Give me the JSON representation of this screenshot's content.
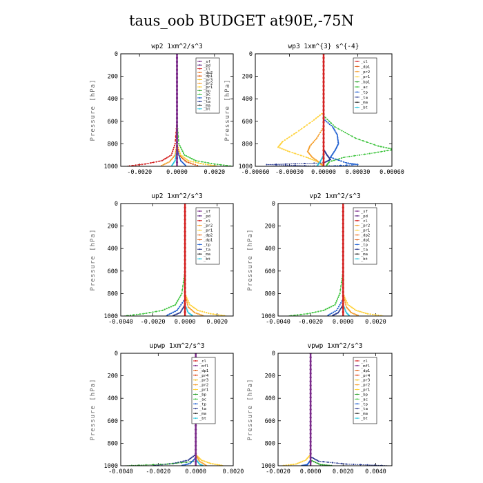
{
  "title": "taus_oob  BUDGET at90E,-75N",
  "colors": {
    "sf": "#7a2a8a",
    "pd": "#5a2080",
    "cl": "#d42020",
    "dp2": "#e87020",
    "dp1": "#e05a10",
    "pr3": "#f2c020",
    "pr2": "#f5a030",
    "pr1": "#ffd23a",
    "bp": "#2aa02a",
    "ac": "#3ec43e",
    "tp": "#1f5fd0",
    "ta": "#2a3a90",
    "ma": "#333333",
    "bt": "#30c8e0",
    "mfl": "#7a2a8a",
    "pr4": "#e04010"
  },
  "panels": [
    {
      "id": "wp2",
      "title": "wp2  1xm^2/s^3",
      "ylabel": "Pressure [hPa]",
      "xlim": [
        -0.003,
        0.003
      ],
      "ylim": [
        1000,
        0
      ],
      "xticks": [
        -0.002,
        0.0,
        0.002
      ],
      "xtick_labels": [
        "-0.0020",
        "0.0000",
        "0.0020"
      ],
      "yticks": [
        0,
        200,
        400,
        600,
        800,
        1000
      ],
      "ytick_labels": [
        "0",
        "200",
        "400",
        "600",
        "800",
        "1000"
      ],
      "legend": [
        "_sf",
        "_pd",
        "_cl",
        "_dp2",
        "_dp1",
        "_pr3",
        "_pr2",
        "_pr1",
        "_bp",
        "_ac",
        "_tp",
        "_ta",
        "_ma",
        "_bt"
      ],
      "series": [
        {
          "name": "_cl",
          "color_key": "cl",
          "p": [
            0,
            600,
            800,
            900,
            950,
            980,
            1000
          ],
          "v": [
            0,
            0,
            -0.0001,
            -0.0003,
            -0.0008,
            -0.0017,
            -0.0027
          ]
        },
        {
          "name": "_ac",
          "color_key": "ac",
          "p": [
            0,
            600,
            800,
            900,
            950,
            980,
            1000
          ],
          "v": [
            0,
            0,
            0.0001,
            0.0004,
            0.001,
            0.002,
            0.003
          ]
        },
        {
          "name": "_pr1",
          "color_key": "pr1",
          "p": [
            0,
            800,
            900,
            950,
            980,
            1000
          ],
          "v": [
            0,
            0,
            0.0002,
            0.0006,
            0.0014,
            0.0022
          ]
        },
        {
          "name": "_pr2",
          "color_key": "pr2",
          "p": [
            0,
            800,
            900,
            960,
            1000
          ],
          "v": [
            0,
            0,
            -0.0001,
            -0.0004,
            -0.0009
          ]
        },
        {
          "name": "_dp1",
          "color_key": "dp1",
          "p": [
            0,
            800,
            900,
            960,
            1000
          ],
          "v": [
            0,
            0,
            0.0001,
            0.0005,
            0.0012
          ]
        },
        {
          "name": "_tp",
          "color_key": "tp",
          "p": [
            0,
            850,
            950,
            1000
          ],
          "v": [
            0,
            0,
            0.0002,
            0.0005
          ]
        },
        {
          "name": "_bt",
          "color_key": "bt",
          "p": [
            0,
            850,
            950,
            1000
          ],
          "v": [
            0,
            0,
            -0.0001,
            -0.0003
          ]
        },
        {
          "name": "_sf",
          "color_key": "sf",
          "p": [
            0,
            1000
          ],
          "v": [
            0,
            0
          ]
        }
      ]
    },
    {
      "id": "wp3",
      "title": "wp3  1xm^{3} s^{-4}",
      "ylabel": "Pressure [hPa]",
      "xlim": [
        -0.0006,
        0.0006
      ],
      "ylim": [
        1000,
        0
      ],
      "xticks": [
        -0.0006,
        -0.0003,
        0.0,
        0.0003,
        0.0006
      ],
      "xtick_labels": [
        "-0.00060",
        "-0.00030",
        "0.00000",
        "0.00030",
        "0.00060"
      ],
      "yticks": [
        0,
        200,
        400,
        600,
        800,
        1000
      ],
      "ytick_labels": [
        "0",
        "200",
        "400",
        "600",
        "800",
        "1000"
      ],
      "legend": [
        "_cl",
        "_dp1",
        "_pr2",
        "_pr1",
        "_bp1",
        "_ac",
        "_tp",
        "_ta",
        "_ma",
        "_bt"
      ],
      "series": [
        {
          "name": "_ac",
          "color_key": "ac",
          "p": [
            0,
            550,
            650,
            750,
            820,
            850,
            880,
            920,
            960,
            1000
          ],
          "v": [
            0,
            0,
            0.0001,
            0.00028,
            0.00048,
            0.00062,
            0.00045,
            0.00018,
            5e-05,
            2e-05
          ]
        },
        {
          "name": "_pr1",
          "color_key": "pr1",
          "p": [
            0,
            520,
            600,
            700,
            780,
            830,
            870,
            920,
            960,
            1000
          ],
          "v": [
            0,
            0,
            -0.0001,
            -0.00024,
            -0.00036,
            -0.0004,
            -0.0003,
            -0.00015,
            -5e-05,
            0
          ]
        },
        {
          "name": "_pr2",
          "color_key": "pr2",
          "p": [
            0,
            650,
            750,
            820,
            870,
            920,
            970,
            1000
          ],
          "v": [
            0,
            0,
            -6e-05,
            -0.00012,
            -0.00014,
            -0.0001,
            -3e-05,
            0
          ]
        },
        {
          "name": "_tp",
          "color_key": "tp",
          "p": [
            0,
            580,
            650,
            720,
            800,
            860,
            920,
            970,
            985,
            1000
          ],
          "v": [
            0,
            0,
            8e-05,
            0.00012,
            0.00013,
            0.0001,
            6e-05,
            0.0002,
            0.0003,
            0
          ]
        },
        {
          "name": "_ta",
          "color_key": "ta",
          "p": [
            0,
            850,
            900,
            940,
            970,
            985,
            1000
          ],
          "v": [
            0,
            0,
            3e-05,
            6e-05,
            0,
            -0.0005,
            0
          ]
        },
        {
          "name": "_bt",
          "color_key": "bt",
          "p": [
            0,
            900,
            960,
            1000
          ],
          "v": [
            0,
            0,
            -3e-05,
            -6e-05
          ]
        },
        {
          "name": "_cl",
          "color_key": "cl",
          "p": [
            0,
            1000
          ],
          "v": [
            0,
            0
          ]
        }
      ]
    },
    {
      "id": "up2",
      "title": "up2  1xm^2/s^3",
      "ylabel": "Pressure [hPa]",
      "xlim": [
        -0.004,
        0.003
      ],
      "ylim": [
        1000,
        0
      ],
      "xticks": [
        -0.004,
        -0.002,
        0.0,
        0.002
      ],
      "xtick_labels": [
        "-0.0040",
        "-0.0020",
        "0.0000",
        "0.0020"
      ],
      "yticks": [
        0,
        200,
        400,
        600,
        800,
        1000
      ],
      "ytick_labels": [
        "0",
        "200",
        "400",
        "600",
        "800",
        "1000"
      ],
      "legend": [
        "_sf",
        "_pd",
        "_cl",
        "_pr2",
        "_pr1",
        "_dp2",
        "_dp1",
        "_tp",
        "_ta",
        "_ma",
        "_bt"
      ],
      "series": [
        {
          "name": "_dp2",
          "color_key": "ac",
          "p": [
            0,
            600,
            800,
            900,
            950,
            980,
            1000
          ],
          "v": [
            0,
            0,
            -0.0002,
            -0.0006,
            -0.0014,
            -0.0026,
            -0.0038
          ]
        },
        {
          "name": "_pr1",
          "color_key": "pr1",
          "p": [
            0,
            800,
            900,
            950,
            980,
            1000
          ],
          "v": [
            0,
            0,
            0.0003,
            0.0008,
            0.0016,
            0.0026
          ]
        },
        {
          "name": "_pr2",
          "color_key": "pr2",
          "p": [
            0,
            800,
            920,
            970,
            1000
          ],
          "v": [
            0,
            0,
            0.0002,
            0.0006,
            0.0012
          ]
        },
        {
          "name": "_tp",
          "color_key": "tp",
          "p": [
            0,
            850,
            950,
            1000
          ],
          "v": [
            0,
            0,
            -0.0005,
            -0.0012
          ]
        },
        {
          "name": "_ta",
          "color_key": "ta",
          "p": [
            0,
            900,
            970,
            1000
          ],
          "v": [
            0,
            0,
            -0.0003,
            -0.0008
          ]
        },
        {
          "name": "_bt",
          "color_key": "bt",
          "p": [
            0,
            900,
            970,
            1000
          ],
          "v": [
            0,
            0,
            0.0002,
            0.0005
          ]
        },
        {
          "name": "_cl",
          "color_key": "cl",
          "p": [
            0,
            1000
          ],
          "v": [
            0,
            0
          ]
        }
      ]
    },
    {
      "id": "vp2",
      "title": "vp2  1xm^2/s^3",
      "ylabel": "Pressure [hPa]",
      "xlim": [
        -0.004,
        0.003
      ],
      "ylim": [
        1000,
        0
      ],
      "xticks": [
        -0.004,
        -0.002,
        0.0,
        0.002
      ],
      "xtick_labels": [
        "-0.0040",
        "-0.0020",
        "0.0000",
        "0.0020"
      ],
      "yticks": [
        0,
        200,
        400,
        600,
        800,
        1000
      ],
      "ytick_labels": [
        "0",
        "200",
        "400",
        "600",
        "800",
        "1000"
      ],
      "legend": [
        "_sf",
        "_pd",
        "_cl",
        "_pr2",
        "_pr1",
        "_dp2",
        "_dp1",
        "_tp",
        "_ta",
        "_ma",
        "_bt"
      ],
      "series": [
        {
          "name": "_dp2",
          "color_key": "ac",
          "p": [
            0,
            600,
            800,
            900,
            950,
            980,
            1000
          ],
          "v": [
            0,
            0,
            -0.0002,
            -0.0005,
            -0.0012,
            -0.0022,
            -0.0034
          ]
        },
        {
          "name": "_pr1",
          "color_key": "pr1",
          "p": [
            0,
            800,
            900,
            950,
            980,
            1000
          ],
          "v": [
            0,
            0,
            0.0003,
            0.0008,
            0.0015,
            0.0025
          ]
        },
        {
          "name": "_pr2",
          "color_key": "pr2",
          "p": [
            0,
            800,
            920,
            970,
            1000
          ],
          "v": [
            0,
            0,
            0.0002,
            0.0005,
            0.001
          ]
        },
        {
          "name": "_tp",
          "color_key": "tp",
          "p": [
            0,
            850,
            950,
            1000
          ],
          "v": [
            0,
            0,
            -0.0004,
            -0.001
          ]
        },
        {
          "name": "_ta",
          "color_key": "ta",
          "p": [
            0,
            900,
            970,
            1000
          ],
          "v": [
            0,
            0,
            -0.0003,
            -0.0007
          ]
        },
        {
          "name": "_bt",
          "color_key": "bt",
          "p": [
            0,
            900,
            970,
            1000
          ],
          "v": [
            0,
            0,
            0.0002,
            0.0004
          ]
        },
        {
          "name": "_cl",
          "color_key": "cl",
          "p": [
            0,
            1000
          ],
          "v": [
            0,
            0
          ]
        }
      ]
    },
    {
      "id": "upwp",
      "title": "upwp  1xm^2/s^3",
      "ylabel": "Pressure [hPa]",
      "xlim": [
        -0.004,
        0.002
      ],
      "ylim": [
        1000,
        0
      ],
      "xticks": [
        -0.004,
        -0.002,
        0.0,
        0.002
      ],
      "xtick_labels": [
        "-0.0040",
        "-0.0020",
        "0.0000",
        "0.0020"
      ],
      "yticks": [
        0,
        200,
        400,
        600,
        800,
        1000
      ],
      "ytick_labels": [
        "0",
        "200",
        "400",
        "600",
        "800",
        "1000"
      ],
      "legend": [
        "_cl",
        "_mfl",
        "_dp1",
        "_pr4",
        "_pr3",
        "_pr2",
        "_pr1",
        "_bp",
        "_ac",
        "_tp",
        "_ta",
        "_ma",
        "_bt"
      ],
      "series": [
        {
          "name": "_ta",
          "color_key": "ta",
          "p": [
            0,
            900,
            950,
            980,
            1000
          ],
          "v": [
            0,
            0,
            -0.0004,
            -0.0012,
            -0.0024
          ]
        },
        {
          "name": "_bp",
          "color_key": "bp",
          "p": [
            0,
            960,
            985,
            1000
          ],
          "v": [
            0,
            0,
            -0.0015,
            -0.0038
          ]
        },
        {
          "name": "_pr1",
          "color_key": "pr1",
          "p": [
            0,
            900,
            950,
            980,
            1000
          ],
          "v": [
            0,
            0,
            0.0003,
            0.0008,
            0.0015
          ]
        },
        {
          "name": "_pr2",
          "color_key": "pr2",
          "p": [
            0,
            900,
            960,
            1000
          ],
          "v": [
            0,
            0,
            0.0002,
            0.0006
          ]
        },
        {
          "name": "_tp",
          "color_key": "tp",
          "p": [
            0,
            930,
            980,
            1000
          ],
          "v": [
            0,
            0,
            -0.0003,
            -0.0008
          ]
        },
        {
          "name": "_bt",
          "color_key": "bt",
          "p": [
            0,
            940,
            985,
            1000
          ],
          "v": [
            0,
            0,
            0.0002,
            0.0004
          ]
        },
        {
          "name": "_mfl",
          "color_key": "mfl",
          "p": [
            0,
            1000
          ],
          "v": [
            0,
            0
          ]
        }
      ]
    },
    {
      "id": "vpwp",
      "title": "vpwp  1xm^2/s^3",
      "ylabel": "Pressure [hPa]",
      "xlim": [
        -0.002,
        0.005
      ],
      "ylim": [
        1000,
        0
      ],
      "xticks": [
        -0.002,
        0.0,
        0.002,
        0.004
      ],
      "xtick_labels": [
        "-0.0020",
        "0.0000",
        "0.0020",
        "0.0040"
      ],
      "yticks": [
        0,
        200,
        400,
        600,
        800,
        1000
      ],
      "ytick_labels": [
        "0",
        "200",
        "400",
        "600",
        "800",
        "1000"
      ],
      "legend": [
        "_cl",
        "_mfl",
        "_dp1",
        "_pr4",
        "_pr3",
        "_pr2",
        "_pr1",
        "_bp",
        "_ac",
        "_tp",
        "_ta",
        "_ma",
        "_bt"
      ],
      "series": [
        {
          "name": "_pr1",
          "color_key": "pr1",
          "p": [
            0,
            900,
            950,
            985,
            1000
          ],
          "v": [
            0,
            0,
            -0.0003,
            -0.0009,
            -0.0018
          ]
        },
        {
          "name": "_ta",
          "color_key": "ta",
          "p": [
            0,
            920,
            960,
            985,
            1000
          ],
          "v": [
            0,
            0,
            0.0005,
            0.0022,
            0.0048
          ]
        },
        {
          "name": "_bp",
          "color_key": "bp",
          "p": [
            0,
            950,
            990,
            1000
          ],
          "v": [
            0,
            0,
            0.0006,
            0.0014
          ]
        },
        {
          "name": "_tp",
          "color_key": "tp",
          "p": [
            0,
            950,
            990,
            1000
          ],
          "v": [
            0,
            0,
            -0.0002,
            -0.0006
          ]
        },
        {
          "name": "_mfl",
          "color_key": "mfl",
          "p": [
            0,
            1000
          ],
          "v": [
            0,
            0
          ]
        }
      ]
    }
  ]
}
